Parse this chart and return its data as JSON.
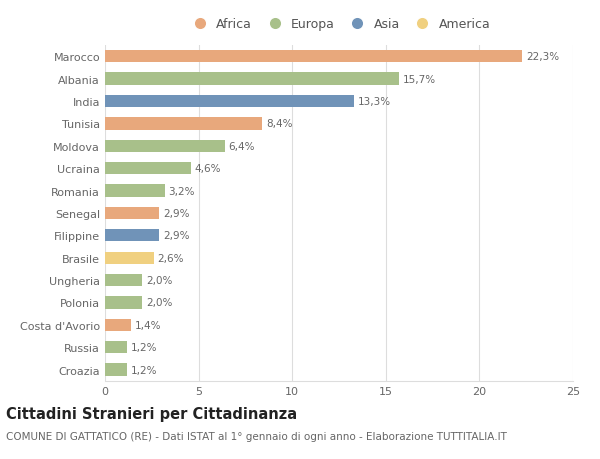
{
  "countries": [
    "Marocco",
    "Albania",
    "India",
    "Tunisia",
    "Moldova",
    "Ucraina",
    "Romania",
    "Senegal",
    "Filippine",
    "Brasile",
    "Ungheria",
    "Polonia",
    "Costa d'Avorio",
    "Russia",
    "Croazia"
  ],
  "values": [
    22.3,
    15.7,
    13.3,
    8.4,
    6.4,
    4.6,
    3.2,
    2.9,
    2.9,
    2.6,
    2.0,
    2.0,
    1.4,
    1.2,
    1.2
  ],
  "labels": [
    "22,3%",
    "15,7%",
    "13,3%",
    "8,4%",
    "6,4%",
    "4,6%",
    "3,2%",
    "2,9%",
    "2,9%",
    "2,6%",
    "2,0%",
    "2,0%",
    "1,4%",
    "1,2%",
    "1,2%"
  ],
  "continents": [
    "Africa",
    "Europa",
    "Asia",
    "Africa",
    "Europa",
    "Europa",
    "Europa",
    "Africa",
    "Asia",
    "America",
    "Europa",
    "Europa",
    "Africa",
    "Europa",
    "Europa"
  ],
  "colors": {
    "Africa": "#E8A87C",
    "Europa": "#A8C08A",
    "Asia": "#7093B8",
    "America": "#F0D080"
  },
  "legend_order": [
    "Africa",
    "Europa",
    "Asia",
    "America"
  ],
  "title": "Cittadini Stranieri per Cittadinanza",
  "subtitle": "COMUNE DI GATTATICO (RE) - Dati ISTAT al 1° gennaio di ogni anno - Elaborazione TUTTITALIA.IT",
  "xlim": [
    0,
    25
  ],
  "xticks": [
    0,
    5,
    10,
    15,
    20,
    25
  ],
  "background_color": "#ffffff",
  "grid_color": "#dddddd",
  "bar_height": 0.55,
  "title_fontsize": 10.5,
  "subtitle_fontsize": 7.5,
  "label_fontsize": 7.5,
  "tick_fontsize": 8,
  "legend_fontsize": 9
}
